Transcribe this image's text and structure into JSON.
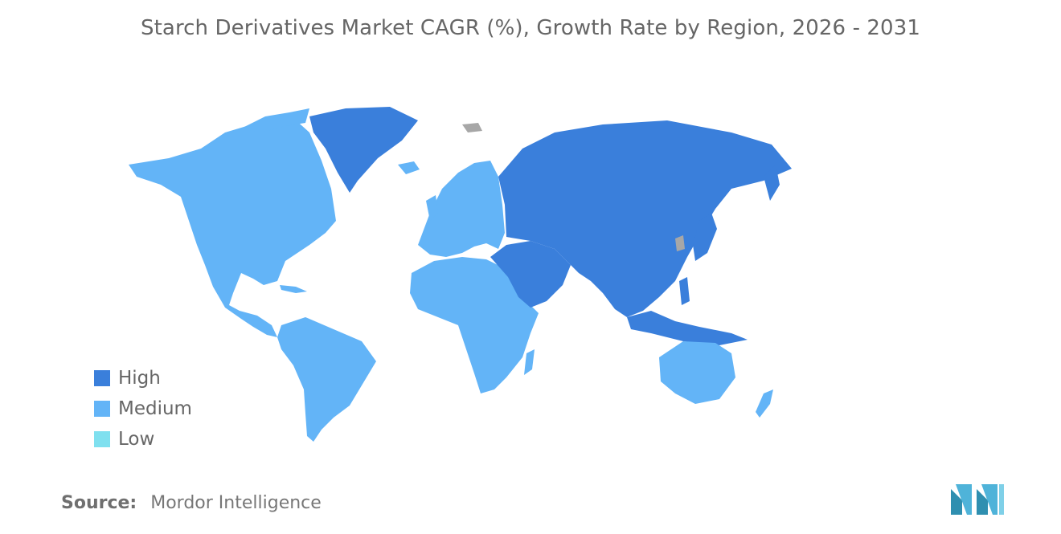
{
  "title": "Starch Derivatives Market CAGR (%), Growth Rate by Region, 2026 - 2031",
  "colors": {
    "high": "#3a7fdb",
    "medium": "#63b4f7",
    "low": "#7fe0ef",
    "no_data": "#a7a7a7"
  },
  "legend": [
    {
      "label": "High",
      "color": "#3a7fdb"
    },
    {
      "label": "Medium",
      "color": "#63b4f7"
    },
    {
      "label": "Low",
      "color": "#7fe0ef"
    }
  ],
  "regions": {
    "north_america": "Medium",
    "south_america": "Medium",
    "europe": "Medium",
    "africa": "Medium",
    "middle_east": "High",
    "asia_pacific": "High",
    "russia": "High",
    "greenland": "High",
    "australia_new_zealand": "Medium"
  },
  "source": {
    "label": "Source:",
    "value": "Mordor Intelligence"
  },
  "logo_icon": "mordor-intelligence-logo"
}
